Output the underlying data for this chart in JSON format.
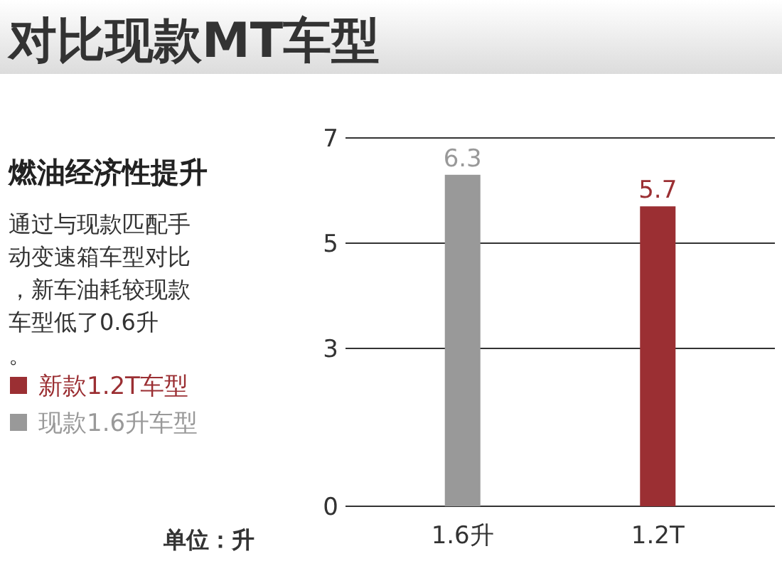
{
  "chart_data": {
    "type": "bar",
    "title": "对比现款MT车型",
    "subtitle": "燃油经济性提升",
    "annotations": [
      "通过与现款匹配手动变速箱车型对比，新车油耗较现款车型低了0.6升。",
      "单位：升"
    ],
    "categories": [
      "1.6升",
      "1.2T"
    ],
    "series": [
      {
        "name": "新款1.2T车型",
        "color": "#9b2f33",
        "values": [
          null,
          5.7
        ]
      },
      {
        "name": "现款1.6升车型",
        "color": "#999999",
        "values": [
          6.3,
          null
        ]
      }
    ],
    "ylim": [
      0,
      7
    ],
    "yticks": [
      0,
      3,
      5,
      7
    ],
    "grid": "y",
    "legend": "left",
    "data_labels": true
  }
}
